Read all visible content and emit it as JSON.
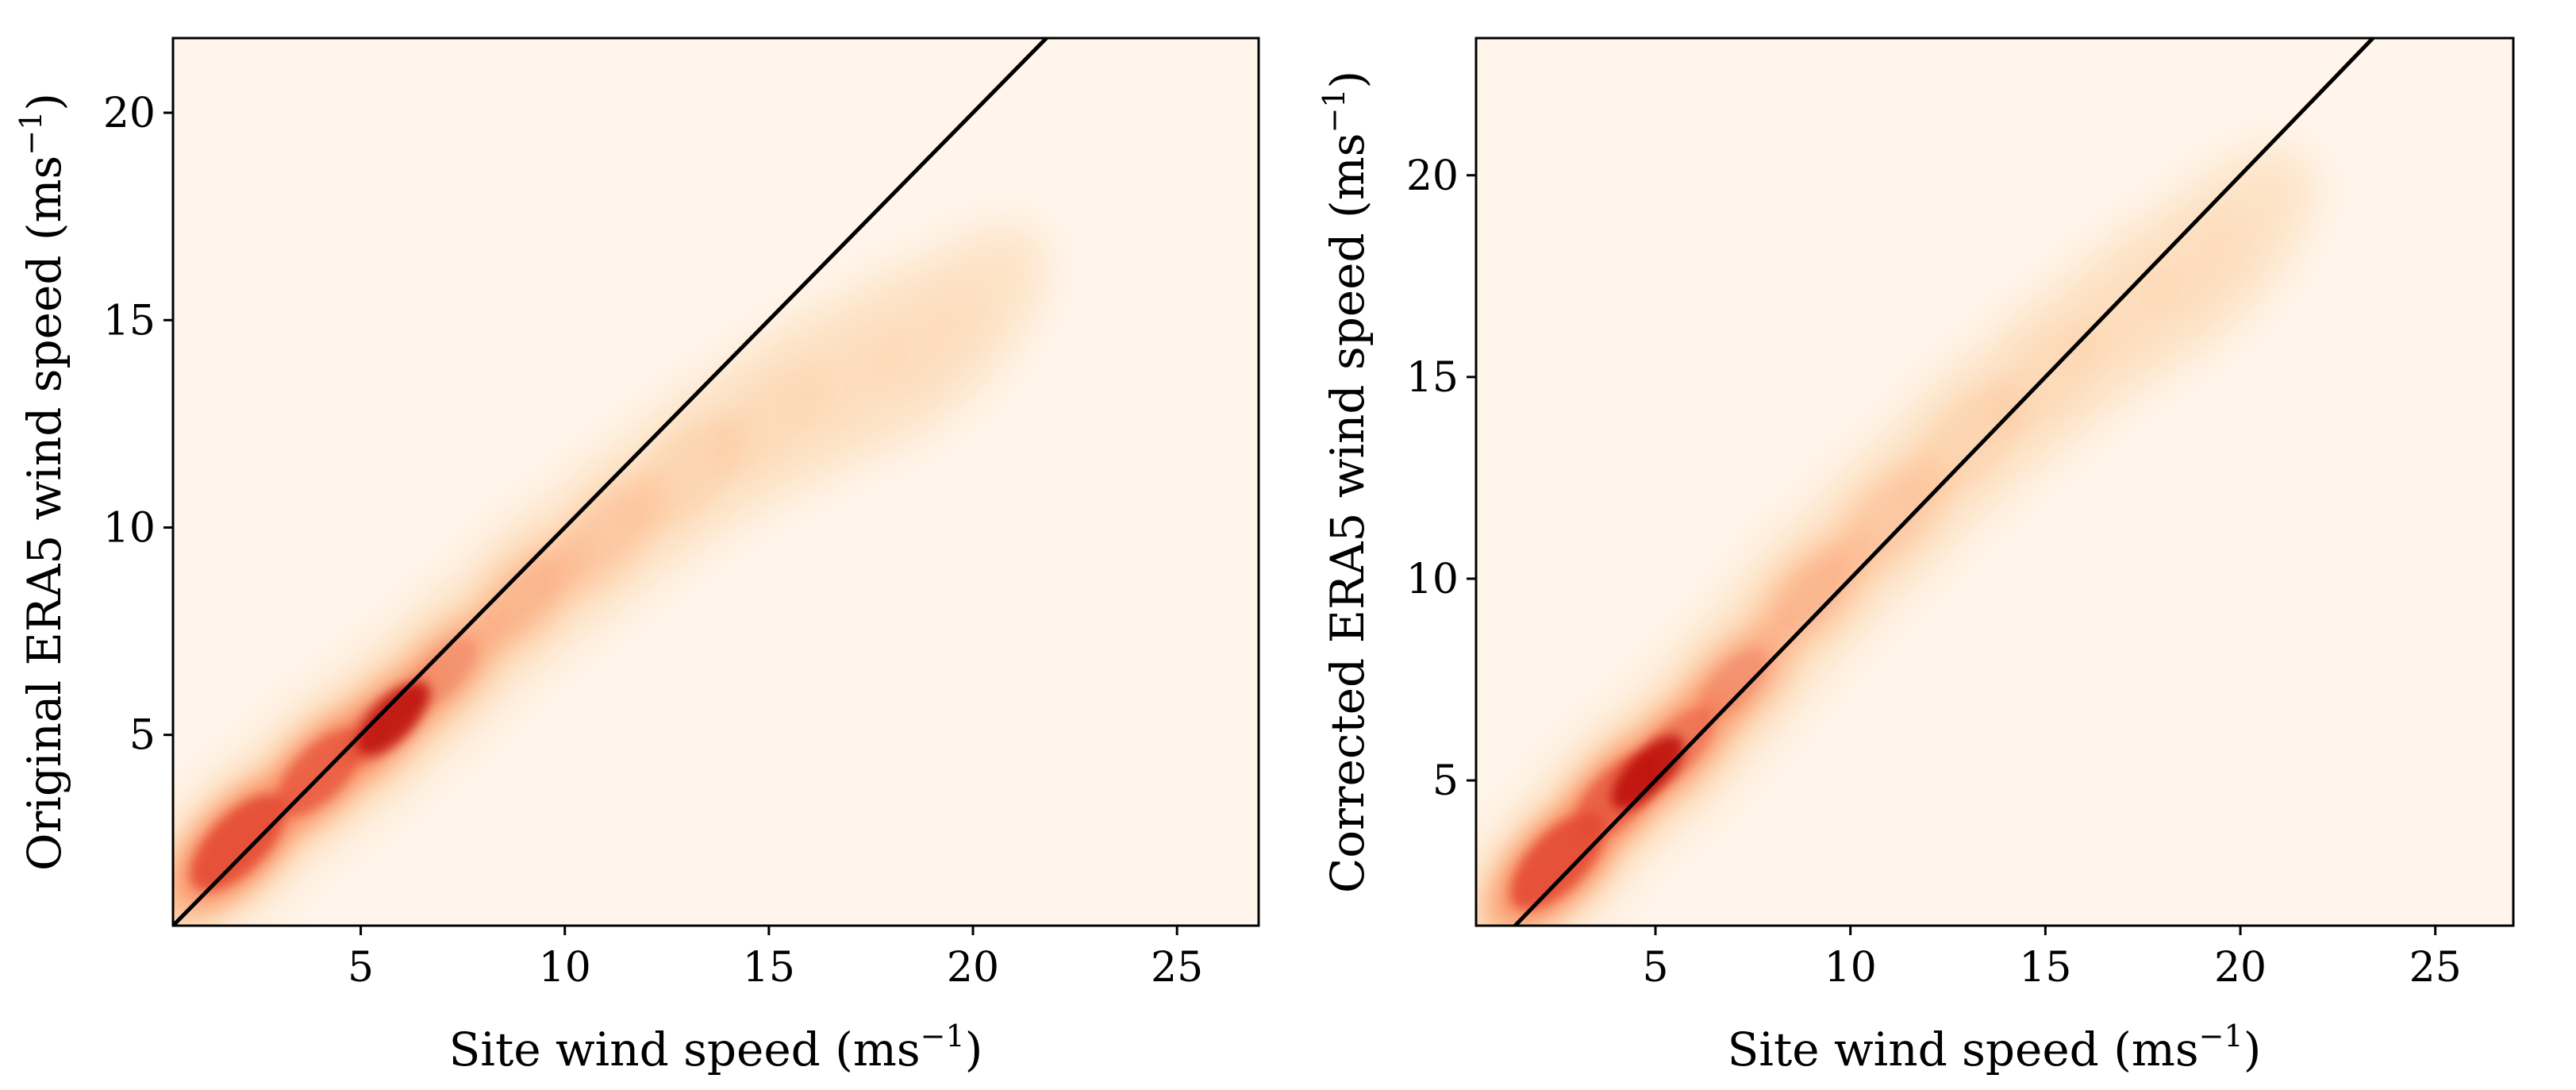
{
  "chart_data": [
    {
      "type": "heatmap",
      "subtype": "2d-density",
      "colormap": "OrRd",
      "title": "",
      "xlabel": "Site wind speed",
      "xunit_base": "ms",
      "xunit_exp": "−1",
      "ylabel": "Original ERA5 wind speed",
      "yunit_base": "ms",
      "yunit_exp": "−1",
      "xlim": [
        0.4,
        27
      ],
      "ylim": [
        0.4,
        21.8
      ],
      "xticks": [
        5,
        10,
        15,
        20,
        25
      ],
      "yticks": [
        5,
        10,
        15,
        20
      ],
      "xtick_labels": [
        "5",
        "10",
        "15",
        "20",
        "25"
      ],
      "ytick_labels": [
        "5",
        "10",
        "15",
        "20"
      ],
      "reference_line": {
        "label": "1:1 line",
        "slope": 1,
        "intercept": 0
      },
      "density_ridge": [
        {
          "x": 2.0,
          "y": 2.4
        },
        {
          "x": 4.0,
          "y": 4.1
        },
        {
          "x": 5.5,
          "y": 5.2
        },
        {
          "x": 7.0,
          "y": 6.5
        },
        {
          "x": 9.0,
          "y": 8.3
        },
        {
          "x": 11.0,
          "y": 9.8
        },
        {
          "x": 13.0,
          "y": 11.3
        },
        {
          "x": 15.0,
          "y": 12.6
        },
        {
          "x": 17.0,
          "y": 13.6
        },
        {
          "x": 19.0,
          "y": 14.5
        }
      ],
      "peak_density": {
        "x": 5.8,
        "y": 5.4
      }
    },
    {
      "type": "heatmap",
      "subtype": "2d-density",
      "colormap": "OrRd",
      "title": "",
      "xlabel": "Site wind speed",
      "xunit_base": "ms",
      "xunit_exp": "−1",
      "ylabel": "Corrected ERA5 wind speed",
      "yunit_base": "ms",
      "yunit_exp": "−1",
      "xlim": [
        0.4,
        27
      ],
      "ylim": [
        1.4,
        23.4
      ],
      "xticks": [
        5,
        10,
        15,
        20,
        25
      ],
      "yticks": [
        5,
        10,
        15,
        20
      ],
      "xtick_labels": [
        "5",
        "10",
        "15",
        "20",
        "25"
      ],
      "ytick_labels": [
        "5",
        "10",
        "15",
        "20"
      ],
      "reference_line": {
        "label": "1:1 line",
        "slope": 1,
        "intercept": 0
      },
      "density_ridge": [
        {
          "x": 2.5,
          "y": 3.0
        },
        {
          "x": 4.0,
          "y": 4.6
        },
        {
          "x": 5.5,
          "y": 5.8
        },
        {
          "x": 7.0,
          "y": 7.4
        },
        {
          "x": 9.0,
          "y": 9.6
        },
        {
          "x": 11.0,
          "y": 11.5
        },
        {
          "x": 13.0,
          "y": 13.4
        },
        {
          "x": 15.0,
          "y": 15.0
        },
        {
          "x": 17.0,
          "y": 16.5
        },
        {
          "x": 19.0,
          "y": 17.8
        }
      ],
      "peak_density": {
        "x": 4.8,
        "y": 5.2
      }
    }
  ],
  "colors": {
    "background": "#fff5eb",
    "cmap_stops": [
      "#fff5eb",
      "#fde3c4",
      "#fcbf93",
      "#f98a62",
      "#e34a33",
      "#b30000"
    ],
    "line": "#000000"
  }
}
